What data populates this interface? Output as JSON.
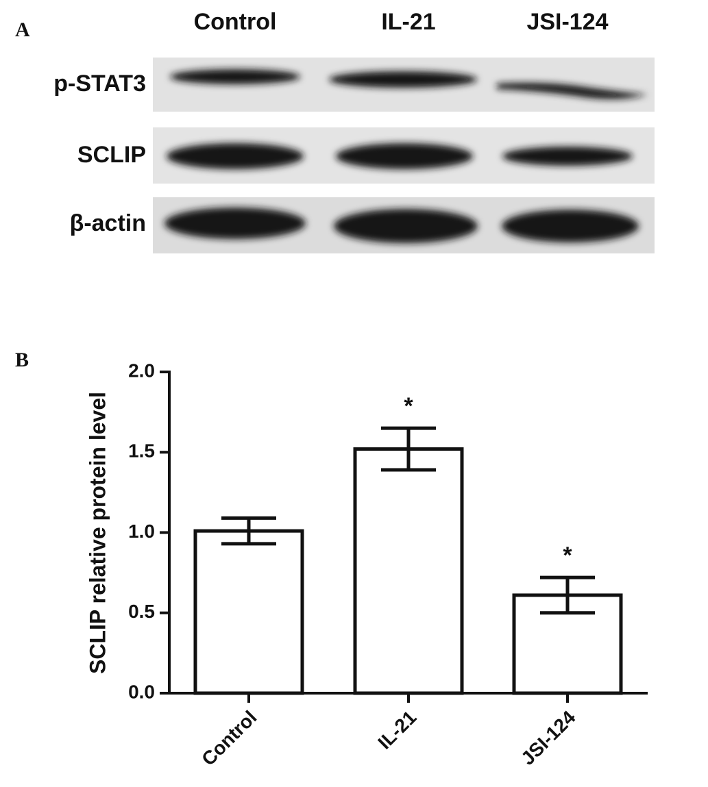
{
  "panel_a": {
    "label": "A",
    "lanes": [
      "Control",
      "IL-21",
      "JSI-124"
    ],
    "rows": [
      "p-STAT3",
      "SCLIP",
      "β-actin"
    ]
  },
  "chart_data": {
    "type": "bar",
    "panel_label": "B",
    "ylabel": "SCLIP relative protein level",
    "categories": [
      "Control",
      "IL-21",
      "JSI-124"
    ],
    "values": [
      1.01,
      1.52,
      0.61
    ],
    "errors": [
      0.08,
      0.13,
      0.11
    ],
    "annotations": [
      null,
      "*",
      "*"
    ],
    "color": "#ffffff",
    "ylim": [
      0,
      2.0
    ],
    "yticks": [
      {
        "value": 0,
        "label": "0.0"
      },
      0.5,
      {
        "value": 1,
        "label": "1.0"
      },
      1.5,
      {
        "value": 2,
        "label": "2.0"
      }
    ]
  }
}
